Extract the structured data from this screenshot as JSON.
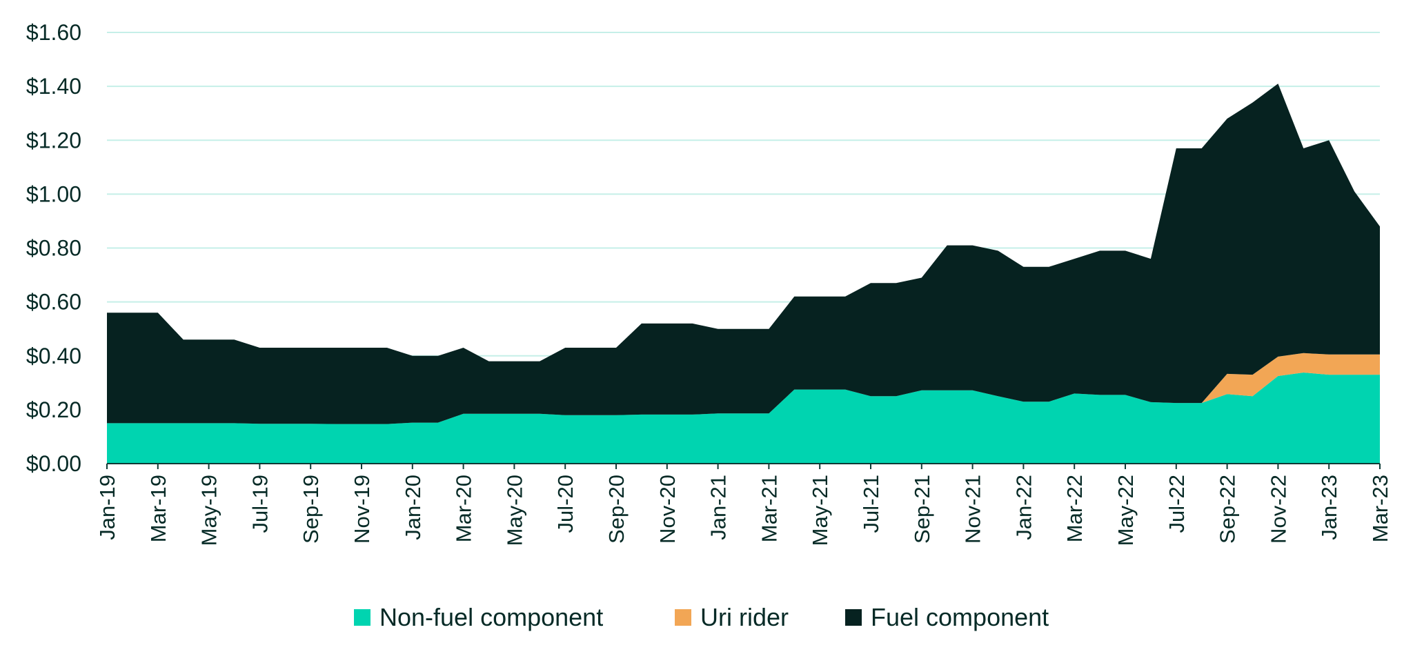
{
  "chart_data": {
    "type": "area",
    "stacked": true,
    "title": "",
    "xlabel": "",
    "ylabel": "",
    "ylim": [
      0,
      1.6
    ],
    "yticks": [
      0,
      0.2,
      0.4,
      0.6,
      0.8,
      1.0,
      1.2,
      1.4,
      1.6
    ],
    "ytick_labels": [
      "$0.00",
      "$0.20",
      "$0.40",
      "$0.60",
      "$0.80",
      "$1.00",
      "$1.20",
      "$1.40",
      "$1.60"
    ],
    "grid": true,
    "legend_position": "bottom-center",
    "categories": [
      "Jan-19",
      "Feb-19",
      "Mar-19",
      "Apr-19",
      "May-19",
      "Jun-19",
      "Jul-19",
      "Aug-19",
      "Sep-19",
      "Oct-19",
      "Nov-19",
      "Dec-19",
      "Jan-20",
      "Feb-20",
      "Mar-20",
      "Apr-20",
      "May-20",
      "Jun-20",
      "Jul-20",
      "Aug-20",
      "Sep-20",
      "Oct-20",
      "Nov-20",
      "Dec-20",
      "Jan-21",
      "Feb-21",
      "Mar-21",
      "Apr-21",
      "May-21",
      "Jun-21",
      "Jul-21",
      "Aug-21",
      "Sep-21",
      "Oct-21",
      "Nov-21",
      "Dec-21",
      "Jan-22",
      "Feb-22",
      "Mar-22",
      "Apr-22",
      "May-22",
      "Jun-22",
      "Jul-22",
      "Aug-22",
      "Sep-22",
      "Oct-22",
      "Nov-22",
      "Dec-22",
      "Jan-23",
      "Feb-23",
      "Mar-23"
    ],
    "xtick_labels": [
      "Jan-19",
      "Mar-19",
      "May-19",
      "Jul-19",
      "Sep-19",
      "Nov-19",
      "Jan-20",
      "Mar-20",
      "May-20",
      "Jul-20",
      "Sep-20",
      "Nov-20",
      "Jan-21",
      "Mar-21",
      "May-21",
      "Jul-21",
      "Sep-21",
      "Nov-21",
      "Jan-22",
      "Mar-22",
      "May-22",
      "Jul-22",
      "Sep-22",
      "Nov-22",
      "Jan-23",
      "Mar-23"
    ],
    "series": [
      {
        "name": "Non-fuel component",
        "color": "#00d4b0",
        "values": [
          0.15,
          0.15,
          0.15,
          0.15,
          0.15,
          0.15,
          0.148,
          0.148,
          0.148,
          0.147,
          0.147,
          0.147,
          0.152,
          0.152,
          0.185,
          0.185,
          0.185,
          0.185,
          0.18,
          0.18,
          0.18,
          0.182,
          0.182,
          0.182,
          0.186,
          0.186,
          0.186,
          0.275,
          0.275,
          0.275,
          0.25,
          0.25,
          0.272,
          0.272,
          0.272,
          0.25,
          0.23,
          0.23,
          0.26,
          0.255,
          0.255,
          0.228,
          0.225,
          0.225,
          0.258,
          0.25,
          0.325,
          0.338,
          0.33,
          0.33,
          0.33
        ]
      },
      {
        "name": "Uri rider",
        "color": "#f2a655",
        "values": [
          0,
          0,
          0,
          0,
          0,
          0,
          0,
          0,
          0,
          0,
          0,
          0,
          0,
          0,
          0,
          0,
          0,
          0,
          0,
          0,
          0,
          0,
          0,
          0,
          0,
          0,
          0,
          0,
          0,
          0,
          0,
          0,
          0,
          0,
          0,
          0,
          0,
          0,
          0,
          0,
          0,
          0,
          0,
          0,
          0.075,
          0.08,
          0.072,
          0.072,
          0.075,
          0.075,
          0.075
        ]
      },
      {
        "name": "Fuel component",
        "color": "#062220",
        "values": [
          0.41,
          0.41,
          0.41,
          0.31,
          0.31,
          0.31,
          0.282,
          0.282,
          0.282,
          0.283,
          0.283,
          0.283,
          0.248,
          0.248,
          0.245,
          0.195,
          0.195,
          0.195,
          0.25,
          0.25,
          0.25,
          0.338,
          0.338,
          0.338,
          0.314,
          0.314,
          0.314,
          0.345,
          0.345,
          0.345,
          0.42,
          0.42,
          0.418,
          0.538,
          0.538,
          0.54,
          0.5,
          0.5,
          0.5,
          0.535,
          0.535,
          0.532,
          0.945,
          0.945,
          0.947,
          1.01,
          1.013,
          0.76,
          0.795,
          0.605,
          0.475
        ]
      }
    ]
  }
}
